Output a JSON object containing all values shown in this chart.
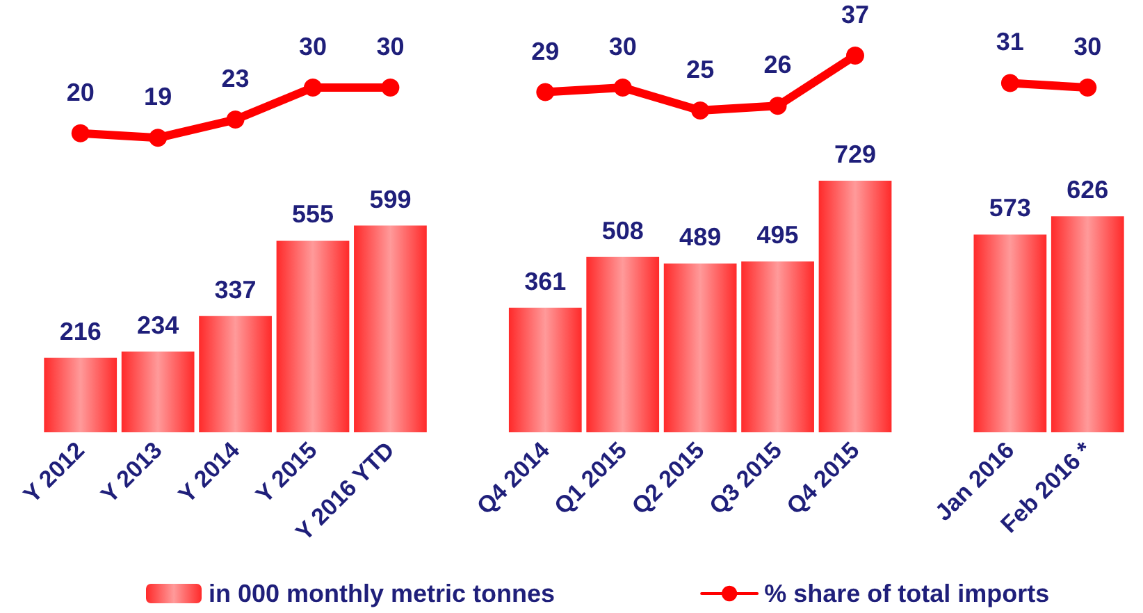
{
  "chart_data": [
    {
      "type": "line",
      "categories": [
        null,
        null,
        null,
        null,
        null
      ],
      "series": [
        {
          "color": "#ff0000",
          "values": [
            20,
            19,
            23,
            30,
            30
          ]
        }
      ],
      "data_labels": true,
      "marker": "circle",
      "line_style": "solid"
    },
    {
      "type": "line",
      "categories": [
        null,
        null,
        null,
        null,
        null
      ],
      "series": [
        {
          "color": "#ff0000",
          "values": [
            29,
            30,
            25,
            26,
            37
          ]
        }
      ],
      "data_labels": true,
      "marker": "circle",
      "line_style": "solid"
    },
    {
      "type": "line",
      "categories": [
        null,
        null
      ],
      "series": [
        {
          "name": "% share of total imports",
          "color": "#ff0000",
          "values": [
            31,
            30
          ]
        }
      ],
      "data_labels": true,
      "legend": "bottom left",
      "marker": "circle",
      "line_style": "solid"
    },
    {
      "type": "bar",
      "categories": [
        "Y 2012",
        "Y 2013",
        "Y 2014",
        "Y 2015",
        "Y 2016 YTD",
        null,
        "Q4 2014",
        "Q1 2015",
        "Q2 2015",
        "Q3 2015",
        "Q4 2015",
        null,
        "Jan 2016",
        "Feb 2016 *"
      ],
      "series": [
        {
          "name": "in 000 monthly metric tonnes",
          "color": "#ff2a2a",
          "values": [
            216,
            234,
            337,
            555,
            599,
            null,
            361,
            508,
            489,
            495,
            729,
            null,
            573,
            626
          ]
        }
      ],
      "data_labels": true,
      "legend": "bottom left",
      "tick_labels": "x"
    }
  ]
}
